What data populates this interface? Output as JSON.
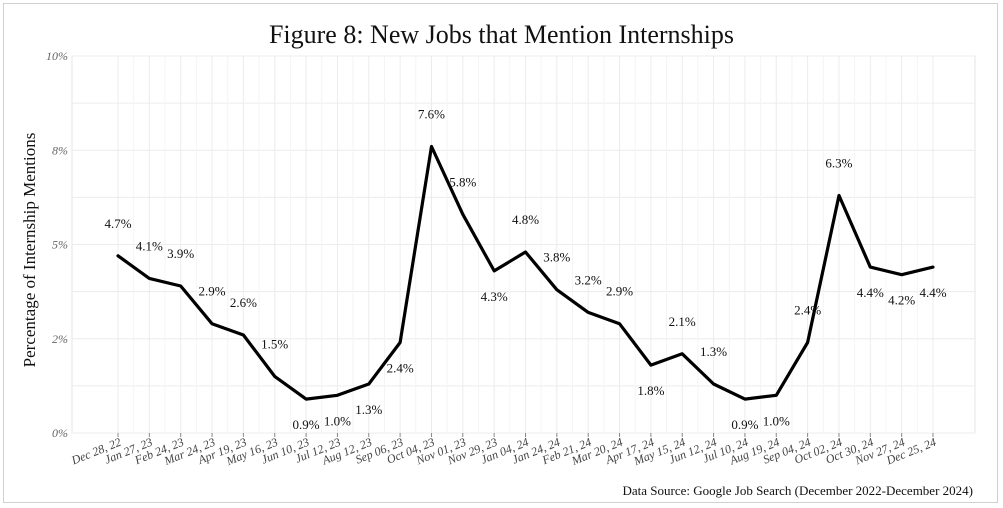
{
  "chart_data": {
    "type": "line",
    "title": "Figure 8: New Jobs that Mention Internships",
    "ylabel": "Percentage of Internship Mentions",
    "xlabel": "",
    "source": "Data Source: Google Job Search (December 2022-December 2024)",
    "ylim": [
      0,
      10
    ],
    "yticks": [
      {
        "v": 0,
        "label": "0%"
      },
      {
        "v": 2.5,
        "label": "2%"
      },
      {
        "v": 5,
        "label": "5%"
      },
      {
        "v": 7.5,
        "label": "8%"
      },
      {
        "v": 10,
        "label": "10%"
      }
    ],
    "grid": true,
    "line_color": "#000000",
    "points": [
      {
        "x": "Dec 28, 22",
        "y": 4.7,
        "label": "4.7%",
        "pos": "above"
      },
      {
        "x": "Jan 27, 23",
        "y": 4.1,
        "label": "4.1%",
        "pos": "above"
      },
      {
        "x": "Feb 24, 23",
        "y": 3.9,
        "label": "3.9%",
        "pos": "above"
      },
      {
        "x": "Mar 24, 23",
        "y": 2.9,
        "label": "2.9%",
        "pos": "above"
      },
      {
        "x": "Apr 19, 23",
        "y": 2.6,
        "label": "2.6%",
        "pos": "above"
      },
      {
        "x": "May 16, 23",
        "y": 1.5,
        "label": "1.5%",
        "pos": "above"
      },
      {
        "x": "Jun 10, 23",
        "y": 0.9,
        "label": "0.9%",
        "pos": "below"
      },
      {
        "x": "Jul 12, 23",
        "y": 1.0,
        "label": "1.0%",
        "pos": "below"
      },
      {
        "x": "Aug 12, 23",
        "y": 1.3,
        "label": "1.3%",
        "pos": "below"
      },
      {
        "x": "Sep 06, 23",
        "y": 2.4,
        "label": "2.4%",
        "pos": "below"
      },
      {
        "x": "Oct 04, 23",
        "y": 7.6,
        "label": "7.6%",
        "pos": "above"
      },
      {
        "x": "Nov 01, 23",
        "y": 5.8,
        "label": "5.8%",
        "pos": "above"
      },
      {
        "x": "Nov 29, 23",
        "y": 4.3,
        "label": "4.3%",
        "pos": "below"
      },
      {
        "x": "Jan 04, 24",
        "y": 4.8,
        "label": "4.8%",
        "pos": "above"
      },
      {
        "x": "Jan 24, 24",
        "y": 3.8,
        "label": "3.8%",
        "pos": "above"
      },
      {
        "x": "Feb 21, 24",
        "y": 3.2,
        "label": "3.2%",
        "pos": "above"
      },
      {
        "x": "Mar 20, 24",
        "y": 2.9,
        "label": "2.9%",
        "pos": "above"
      },
      {
        "x": "Apr 17, 24",
        "y": 1.8,
        "label": "1.8%",
        "pos": "below"
      },
      {
        "x": "May 15, 24",
        "y": 2.1,
        "label": "2.1%",
        "pos": "above"
      },
      {
        "x": "Jun 12, 24",
        "y": 1.3,
        "label": "1.3%",
        "pos": "above"
      },
      {
        "x": "Jul 10, 24",
        "y": 0.9,
        "label": "0.9%",
        "pos": "below"
      },
      {
        "x": "Aug 19, 24",
        "y": 1.0,
        "label": "1.0%",
        "pos": "below"
      },
      {
        "x": "Sep 04, 24",
        "y": 2.4,
        "label": "2.4%",
        "pos": "above"
      },
      {
        "x": "Oct 02, 24",
        "y": 6.3,
        "label": "6.3%",
        "pos": "above"
      },
      {
        "x": "Oct 30, 24",
        "y": 4.4,
        "label": "4.4%",
        "pos": "below"
      },
      {
        "x": "Nov 27, 24",
        "y": 4.2,
        "label": "4.2%",
        "pos": "below"
      },
      {
        "x": "Dec 25, 24",
        "y": 4.4,
        "label": "4.4%",
        "pos": "below"
      }
    ]
  }
}
